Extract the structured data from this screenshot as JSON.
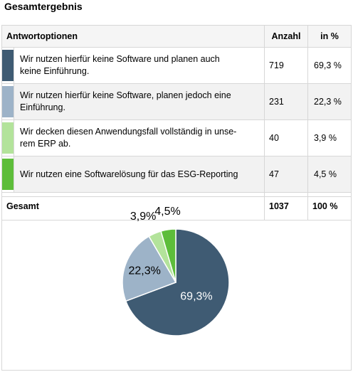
{
  "title": "Gesamtergebnis",
  "table": {
    "headers": {
      "option": "Antwortoptionen",
      "count": "Anzahl",
      "percent": "in %"
    },
    "rows": [
      {
        "label_line1": "Wir nutzen hierfür keine Software und planen auch",
        "label_line2": "keine Einführung.",
        "count": "719",
        "percent": "69,3 %",
        "color": "#3f5b73"
      },
      {
        "label_line1": "Wir nutzen hierfür keine Software, planen jedoch eine",
        "label_line2": "Einführung.",
        "count": "231",
        "percent": "22,3 %",
        "color": "#9db3c8"
      },
      {
        "label_line1": "Wir decken diesen Anwendungsfall vollständig in unse-",
        "label_line2": "rem ERP ab.",
        "count": "40",
        "percent": "3,9 %",
        "color": "#b3e39b"
      },
      {
        "label_line1": "Wir nutzen eine Softwarelösung für das ESG-Reporting",
        "label_line2": "",
        "count": "47",
        "percent": "4,5 %",
        "color": "#5dbd3a"
      }
    ],
    "total": {
      "label": "Gesamt",
      "count": "1037",
      "percent": "100 %"
    }
  },
  "chart_data": {
    "type": "pie",
    "categories": [
      "Wir nutzen hierfür keine Software und planen auch keine Einführung.",
      "Wir nutzen hierfür keine Software, planen jedoch eine Einführung.",
      "Wir decken diesen Anwendungsfall vollständig in unserem ERP ab.",
      "Wir nutzen eine Softwarelösung für das ESG-Reporting"
    ],
    "values": [
      69.3,
      22.3,
      3.9,
      4.5
    ],
    "labels": [
      "69,3%",
      "22,3%",
      "3,9%",
      "4,5%"
    ],
    "colors": [
      "#3f5b73",
      "#9db3c8",
      "#b3e39b",
      "#5dbd3a"
    ],
    "label_colors": [
      "#ffffff",
      "#000000",
      "#000000",
      "#000000"
    ]
  }
}
